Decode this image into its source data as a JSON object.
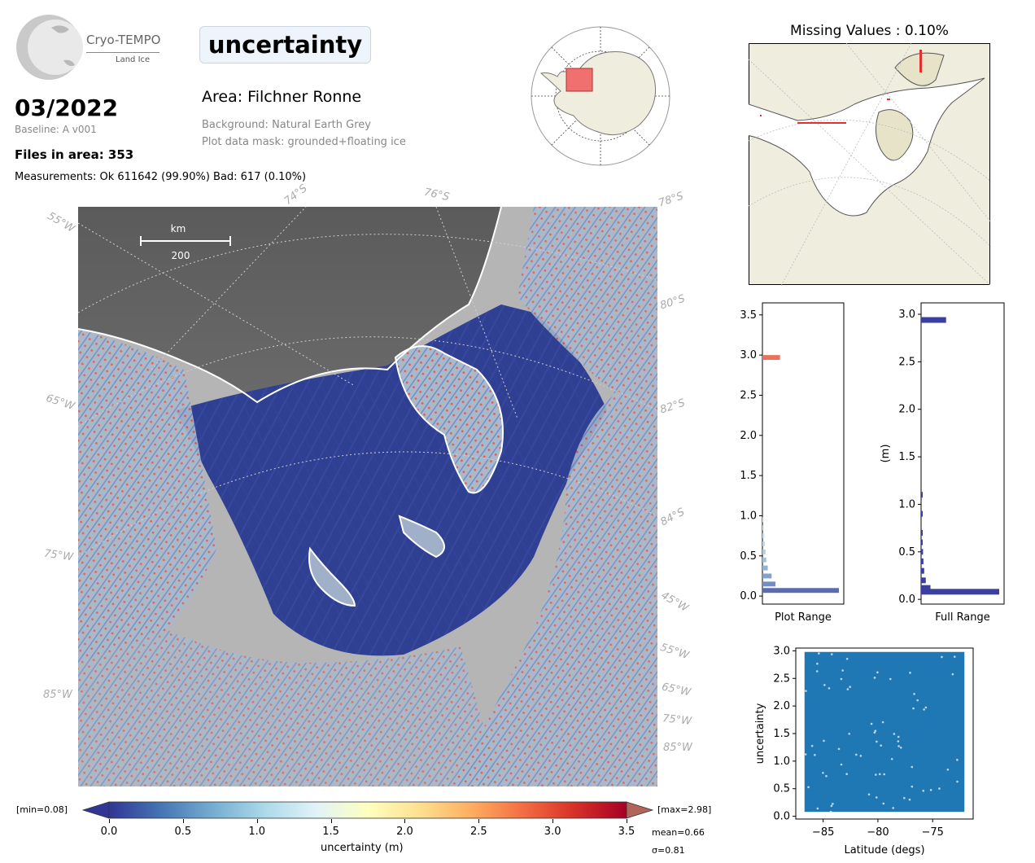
{
  "logo": {
    "title": "Cryo-TEMPO",
    "subtitle": "Land Ice"
  },
  "header": {
    "date": "03/2022",
    "baseline": "Baseline: A v001",
    "files": "Files in area: 353",
    "measurements": "Measurements: Ok 611642 (99.90%) Bad: 617 (0.10%)",
    "parameter": "uncertainty",
    "area": "Area: Filchner Ronne",
    "background": "Background: Natural Earth Grey",
    "mask": "Plot data mask: grounded+floating ice"
  },
  "main_map": {
    "scale_unit": "km",
    "scale_value": "200",
    "lat_labels": [
      "74°S",
      "76°S",
      "78°S",
      "80°S",
      "82°S",
      "84°S"
    ],
    "lon_labels": [
      "55°W",
      "65°W",
      "75°W",
      "85°W",
      "45°W",
      "55°W",
      "65°W",
      "75°W",
      "85°W"
    ]
  },
  "colorbar": {
    "min_label": "[min=0.08]",
    "max_label": "[max=2.98]",
    "ticks": [
      "0.0",
      "0.5",
      "1.0",
      "1.5",
      "2.0",
      "2.5",
      "3.0",
      "3.5"
    ],
    "label": "uncertainty (m)",
    "mean": "mean=0.66",
    "sigma": "σ=0.81",
    "colors": [
      "#313695",
      "#4575b4",
      "#74add1",
      "#abd9e9",
      "#e0f3f8",
      "#ffffbf",
      "#fee090",
      "#fdae61",
      "#f46d43",
      "#d73027",
      "#a50026"
    ]
  },
  "missing_map": {
    "title": "Missing Values : 0.10%"
  },
  "chart_data": [
    {
      "type": "bar",
      "name": "plot-range-histogram",
      "orientation": "horizontal",
      "xlabel": "Plot Range",
      "ylabel": "",
      "ylim": [
        -0.1,
        3.65
      ],
      "yticks": [
        "0.0",
        "0.5",
        "1.0",
        "1.5",
        "2.0",
        "2.5",
        "3.0",
        "3.5"
      ],
      "bins_y": [
        0.07,
        0.15,
        0.25,
        0.35,
        0.45,
        0.55,
        0.65,
        0.75,
        0.85,
        0.95,
        2.97
      ],
      "counts": [
        1.0,
        0.17,
        0.12,
        0.07,
        0.05,
        0.04,
        0.03,
        0.025,
        0.02,
        0.015,
        0.23
      ],
      "colors": [
        "#5a6bb0",
        "#6f8fc5",
        "#7fa2cf",
        "#8fb4d8",
        "#9fc3df",
        "#aecde4",
        "#bcd6e8",
        "#cbdfec",
        "#d7e6ef",
        "#e2ecf1",
        "#e8735c"
      ]
    },
    {
      "type": "bar",
      "name": "full-range-histogram",
      "orientation": "horizontal",
      "xlabel": "Full Range",
      "ylabel": "(m)",
      "ylim": [
        -0.05,
        3.12
      ],
      "yticks": [
        "0.0",
        "0.5",
        "1.0",
        "1.5",
        "2.0",
        "2.5",
        "3.0"
      ],
      "bins_y": [
        0.08,
        0.12,
        0.2,
        0.3,
        0.4,
        0.5,
        0.6,
        0.7,
        0.9,
        1.1,
        2.94
      ],
      "counts": [
        1.0,
        0.12,
        0.06,
        0.04,
        0.03,
        0.025,
        0.02,
        0.015,
        0.01,
        0.008,
        0.32
      ],
      "colors": [
        "#3a3fa0",
        "#3a3fa0",
        "#3a3fa0",
        "#3a3fa0",
        "#3a3fa0",
        "#3a3fa0",
        "#3a3fa0",
        "#3a3fa0",
        "#3a3fa0",
        "#3a3fa0",
        "#3a3fa0"
      ]
    },
    {
      "type": "scatter",
      "name": "uncertainty-vs-latitude",
      "xlabel": "Latitude (degs)",
      "ylabel": "uncertainty",
      "xlim": [
        -87.5,
        -71.3
      ],
      "ylim": [
        -0.05,
        3.05
      ],
      "xticks": [
        "−85",
        "−80",
        "−75"
      ],
      "yticks": [
        "0.0",
        "0.5",
        "1.0",
        "1.5",
        "2.0",
        "2.5",
        "3.0"
      ],
      "x_range": [
        -86.7,
        -72.1
      ],
      "y_range": [
        0.08,
        2.98
      ],
      "color": "#1f77b4"
    }
  ]
}
